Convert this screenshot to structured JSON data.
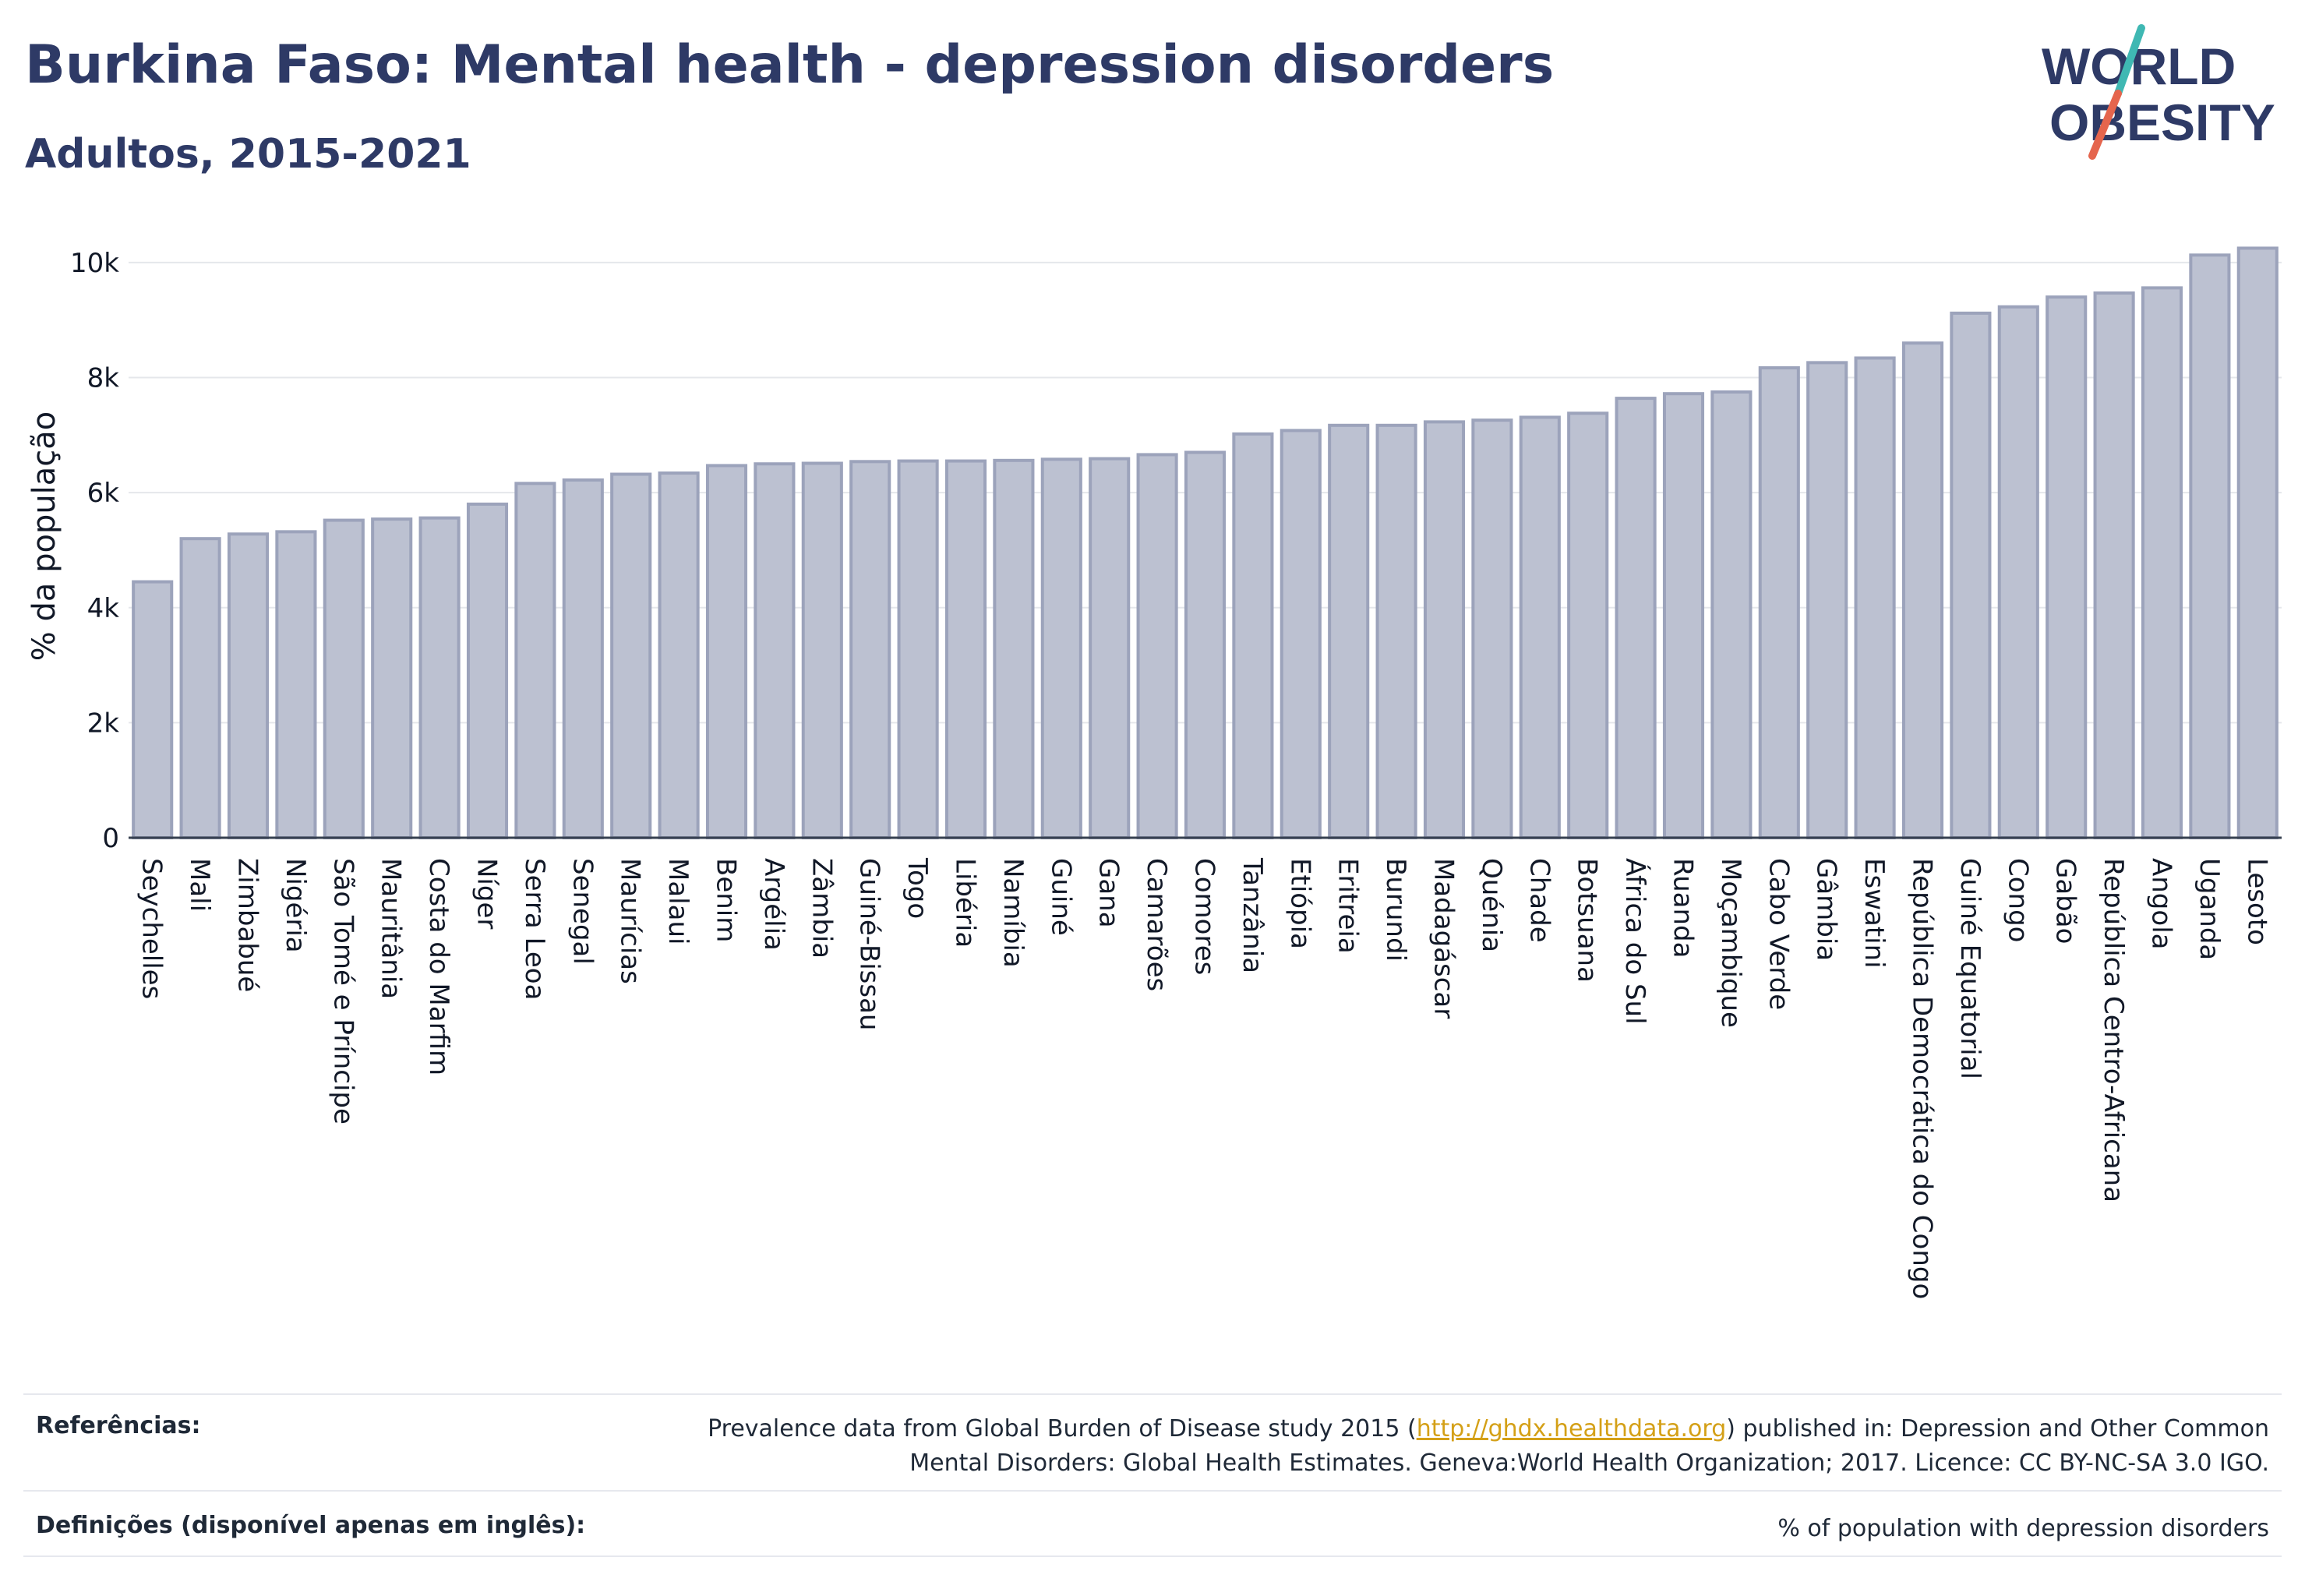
{
  "header": {
    "title": "Burkina Faso: Mental health - depression disorders",
    "subtitle": "Adultos, 2015-2021"
  },
  "logo": {
    "line1": "WORLD",
    "line2": "OBESITY"
  },
  "colors": {
    "title": "#2e3a66",
    "bar_fill": "#bcc1d1",
    "bar_stroke": "#9ca3bb",
    "grid": "#e5e7eb",
    "logo_slash_top": "#3fb8b3",
    "logo_slash_bottom": "#e5654d",
    "link": "#d4a017"
  },
  "chart_data": {
    "type": "bar",
    "title": "",
    "xlabel": "",
    "ylabel": "% da população",
    "ylim": [
      0,
      10500
    ],
    "yticks": [
      0,
      2000,
      4000,
      6000,
      8000,
      10000
    ],
    "ytick_labels": [
      "0",
      "2k",
      "4k",
      "6k",
      "8k",
      "10k"
    ],
    "grid": true,
    "categories": [
      "Seychelles",
      "Mali",
      "Zimbabué",
      "Nigéria",
      "São Tomé e Príncipe",
      "Mauritânia",
      "Costa do Marfim",
      "Níger",
      "Serra Leoa",
      "Senegal",
      "Maurícias",
      "Malaui",
      "Benim",
      "Argélia",
      "Zâmbia",
      "Guiné-Bissau",
      "Togo",
      "Libéria",
      "Namíbia",
      "Guiné",
      "Gana",
      "Camarões",
      "Comores",
      "Tanzânia",
      "Etiópia",
      "Eritreia",
      "Burundi",
      "Madagáscar",
      "Quénia",
      "Chade",
      "Botsuana",
      "África do Sul",
      "Ruanda",
      "Moçambique",
      "Cabo Verde",
      "Gâmbia",
      "Eswatini",
      "República Democrática do Congo",
      "Guiné Equatorial",
      "Congo",
      "Gabão",
      "República Centro-Africana",
      "Angola",
      "Uganda",
      "Lesoto"
    ],
    "values": [
      4450,
      5200,
      5280,
      5320,
      5520,
      5540,
      5560,
      5800,
      6160,
      6220,
      6320,
      6340,
      6470,
      6500,
      6510,
      6540,
      6550,
      6550,
      6560,
      6580,
      6590,
      6660,
      6700,
      7020,
      7080,
      7170,
      7170,
      7230,
      7260,
      7310,
      7380,
      7640,
      7720,
      7750,
      8170,
      8260,
      8340,
      8600,
      9120,
      9230,
      9400,
      9470,
      9560,
      10130,
      10250
    ]
  },
  "footer": {
    "references_label": "Referências:",
    "references_text_before": "Prevalence data from Global Burden of Disease study 2015 (",
    "references_link": "http://ghdx.healthdata.org",
    "references_text_after": ") published in: Depression and Other Common",
    "references_line2": "Mental Disorders: Global Health Estimates. Geneva:World Health Organization; 2017. Licence: CC BY-NC-SA 3.0 IGO.",
    "definitions_label": "Definições (disponível apenas em inglês):",
    "definitions_text": "% of population with depression disorders"
  }
}
